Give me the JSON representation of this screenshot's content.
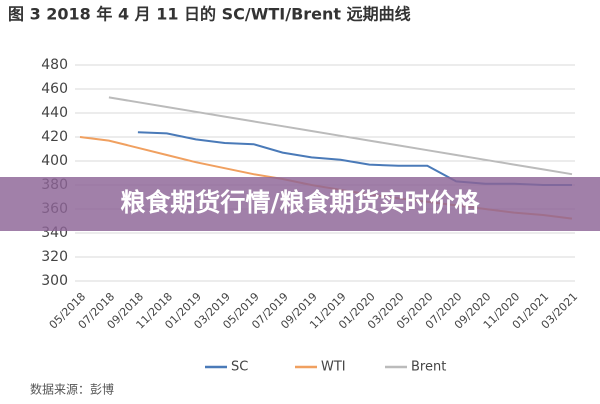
{
  "chart_data": {
    "type": "line",
    "title": "图 3 2018 年 4 月 11 日的 SC/WTI/Brent 远期曲线",
    "banner": "粮食期货行情/粮食期货实时价格",
    "source": "数据来源：彭博",
    "categories": [
      "05/2018",
      "07/2018",
      "09/2018",
      "11/2018",
      "01/2019",
      "03/2019",
      "05/2019",
      "07/2019",
      "09/2019",
      "11/2019",
      "01/2020",
      "03/2020",
      "05/2020",
      "07/2020",
      "09/2020",
      "11/2020",
      "01/2021",
      "03/2021"
    ],
    "series": [
      {
        "name": "SC",
        "color": "#4a7ab8",
        "values": [
          null,
          null,
          424,
          423,
          418,
          415,
          414,
          407,
          403,
          401,
          397,
          396,
          396,
          383,
          381,
          381,
          380,
          380
        ]
      },
      {
        "name": "WTI",
        "color": "#f0a060",
        "values": [
          420,
          417,
          411,
          405,
          399,
          394,
          389,
          385,
          380,
          376,
          372,
          369,
          366,
          363,
          360,
          357,
          355,
          352
        ]
      },
      {
        "name": "Brent",
        "color": "#bbbbbb",
        "values": [
          null,
          453,
          449,
          445,
          441,
          437,
          433,
          429,
          425,
          421,
          417,
          413,
          409,
          405,
          401,
          397,
          393,
          389
        ]
      }
    ],
    "ylim": [
      300,
      480
    ],
    "yticks": [
      300,
      320,
      340,
      360,
      380,
      400,
      420,
      440,
      460,
      480
    ],
    "grid": true
  }
}
